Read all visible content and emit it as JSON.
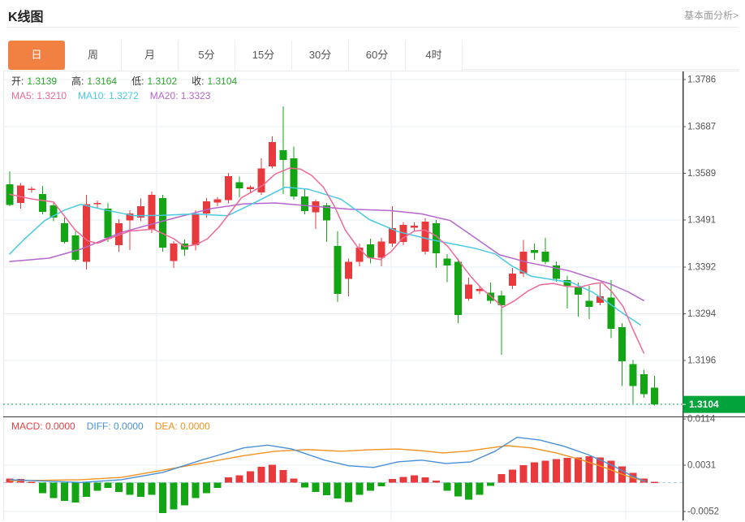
{
  "header": {
    "title": "K线图",
    "link": "基本面分析>"
  },
  "tabs": [
    {
      "id": "day",
      "label": "日",
      "active": true
    },
    {
      "id": "week",
      "label": "周",
      "active": false
    },
    {
      "id": "month",
      "label": "月",
      "active": false
    },
    {
      "id": "min5",
      "label": "5分",
      "active": false
    },
    {
      "id": "min15",
      "label": "15分",
      "active": false
    },
    {
      "id": "min30",
      "label": "30分",
      "active": false
    },
    {
      "id": "min60",
      "label": "60分",
      "active": false
    },
    {
      "id": "hour4",
      "label": "4时",
      "active": false
    }
  ],
  "ohlc_legend": {
    "items": [
      {
        "label": "开:",
        "value": "1.3139"
      },
      {
        "label": "高:",
        "value": "1.3164"
      },
      {
        "label": "低:",
        "value": "1.3102"
      },
      {
        "label": "收:",
        "value": "1.3104"
      }
    ]
  },
  "ma_legend": [
    {
      "label": "MA5:",
      "value": "1.3210",
      "color": "#ef6899"
    },
    {
      "label": "MA10:",
      "value": "1.3272",
      "color": "#49c9e4"
    },
    {
      "label": "MA20:",
      "value": "1.3323",
      "color": "#b666cc"
    }
  ],
  "macd_legend": [
    {
      "label": "MACD:",
      "value": "0.0000",
      "color": "#e64242"
    },
    {
      "label": "DIFF:",
      "value": "0.0000",
      "color": "#4a90d9"
    },
    {
      "label": "DEA:",
      "value": "0.0000",
      "color": "#f29221"
    }
  ],
  "colors": {
    "up": "#e83a3c",
    "down": "#13a513",
    "ma5": "#ef6899",
    "ma10": "#49c9e4",
    "ma20": "#b666cc",
    "diff": "#4a90d9",
    "dea": "#f29221",
    "tab_active": "#f08143",
    "badge": "#00a43b",
    "price_text": "#29a329",
    "axis_text": "#555555",
    "grid": "#e9eff5",
    "dark_line": "#3a3a3a",
    "border": "#e9e9e9",
    "zero_dash": "#aed0ec",
    "dotted_price": "#00a43b"
  },
  "chart_data": {
    "type": "candlestick_with_macd",
    "period_selected": "日",
    "price_axis_labels": [
      "1.3786",
      "1.3687",
      "1.3589",
      "1.3491",
      "1.3392",
      "1.3294",
      "1.3196"
    ],
    "macd_axis_labels": [
      "0.0114",
      "0.0031",
      "-0.0052"
    ],
    "last_price": "1.3104",
    "candles": [
      [
        1.3566,
        1.3593,
        1.352,
        1.3523
      ],
      [
        1.3527,
        1.3569,
        1.3515,
        1.3564
      ],
      [
        1.3554,
        1.3561,
        1.3548,
        1.3557
      ],
      [
        1.3546,
        1.3563,
        1.3503,
        1.3508
      ],
      [
        1.3522,
        1.3529,
        1.3489,
        1.3496
      ],
      [
        1.3484,
        1.3496,
        1.3442,
        1.3445
      ],
      [
        1.3459,
        1.3467,
        1.3404,
        1.3408
      ],
      [
        1.3403,
        1.3544,
        1.3387,
        1.3524
      ],
      [
        1.3524,
        1.3532,
        1.3517,
        1.3527
      ],
      [
        1.3515,
        1.3527,
        1.3445,
        1.3454
      ],
      [
        1.3438,
        1.3493,
        1.3425,
        1.3484
      ],
      [
        1.349,
        1.3512,
        1.3428,
        1.3505
      ],
      [
        1.3496,
        1.3536,
        1.3489,
        1.352
      ],
      [
        1.3471,
        1.3551,
        1.3464,
        1.3544
      ],
      [
        1.3537,
        1.3544,
        1.3425,
        1.3433
      ],
      [
        1.3405,
        1.3447,
        1.3391,
        1.3442
      ],
      [
        1.3442,
        1.345,
        1.3415,
        1.3429
      ],
      [
        1.3438,
        1.3512,
        1.3427,
        1.3505
      ],
      [
        1.3505,
        1.3537,
        1.3496,
        1.353
      ],
      [
        1.3528,
        1.354,
        1.352,
        1.3535
      ],
      [
        1.3533,
        1.359,
        1.3526,
        1.3583
      ],
      [
        1.357,
        1.3582,
        1.3539,
        1.3558
      ],
      [
        1.3556,
        1.3564,
        1.3549,
        1.356
      ],
      [
        1.3549,
        1.3621,
        1.3544,
        1.3599
      ],
      [
        1.3604,
        1.3667,
        1.3599,
        1.3655
      ],
      [
        1.3638,
        1.373,
        1.3546,
        1.3617
      ],
      [
        1.3621,
        1.3645,
        1.3534,
        1.3541
      ],
      [
        1.3541,
        1.3556,
        1.3503,
        1.351
      ],
      [
        1.3507,
        1.3534,
        1.3472,
        1.353
      ],
      [
        1.3522,
        1.3527,
        1.3445,
        1.349
      ],
      [
        1.3437,
        1.3467,
        1.3319,
        1.3336
      ],
      [
        1.3368,
        1.341,
        1.3331,
        1.3403
      ],
      [
        1.3403,
        1.3442,
        1.3394,
        1.3433
      ],
      [
        1.344,
        1.3452,
        1.34,
        1.3412
      ],
      [
        1.3412,
        1.3454,
        1.3394,
        1.3446
      ],
      [
        1.3442,
        1.352,
        1.3435,
        1.3474
      ],
      [
        1.3445,
        1.3487,
        1.3438,
        1.3481
      ],
      [
        1.3475,
        1.3486,
        1.3469,
        1.3479
      ],
      [
        1.3425,
        1.3495,
        1.3419,
        1.3488
      ],
      [
        1.3484,
        1.3491,
        1.3391,
        1.3421
      ],
      [
        1.341,
        1.342,
        1.3361,
        1.3396
      ],
      [
        1.3403,
        1.341,
        1.3275,
        1.3292
      ],
      [
        1.3326,
        1.337,
        1.3322,
        1.3356
      ],
      [
        1.3342,
        1.3352,
        1.3336,
        1.3346
      ],
      [
        1.3339,
        1.336,
        1.3316,
        1.3322
      ],
      [
        1.3333,
        1.3343,
        1.3208,
        1.3312
      ],
      [
        1.3353,
        1.3391,
        1.3346,
        1.3379
      ],
      [
        1.3379,
        1.3449,
        1.3372,
        1.3425
      ],
      [
        1.3428,
        1.3442,
        1.3408,
        1.3422
      ],
      [
        1.3425,
        1.3454,
        1.3398,
        1.3403
      ],
      [
        1.3396,
        1.3404,
        1.3362,
        1.3368
      ],
      [
        1.3365,
        1.3374,
        1.3305,
        1.3353
      ],
      [
        1.3351,
        1.336,
        1.3288,
        1.3334
      ],
      [
        1.3322,
        1.3353,
        1.3283,
        1.3309
      ],
      [
        1.3317,
        1.3357,
        1.3312,
        1.3331
      ],
      [
        1.3328,
        1.3365,
        1.3243,
        1.3263
      ],
      [
        1.3266,
        1.3275,
        1.3143,
        1.3195
      ],
      [
        1.3189,
        1.3197,
        1.3106,
        1.3143
      ],
      [
        1.3167,
        1.3177,
        1.3118,
        1.3126
      ],
      [
        1.3139,
        1.3164,
        1.3102,
        1.3104
      ]
    ],
    "ma5_points": [
      [
        0,
        1.3545
      ],
      [
        2.1,
        1.3535
      ],
      [
        4,
        1.3529
      ],
      [
        6,
        1.347
      ],
      [
        7.1,
        1.3448
      ],
      [
        8,
        1.3442
      ],
      [
        9.1,
        1.3452
      ],
      [
        11,
        1.3468
      ],
      [
        13.1,
        1.3472
      ],
      [
        15,
        1.3452
      ],
      [
        16,
        1.3435
      ],
      [
        17.1,
        1.344
      ],
      [
        18.1,
        1.3452
      ],
      [
        19.2,
        1.3478
      ],
      [
        20.2,
        1.3508
      ],
      [
        21.2,
        1.3538
      ],
      [
        22.3,
        1.3552
      ],
      [
        23.2,
        1.3565
      ],
      [
        24.3,
        1.3588
      ],
      [
        25.6,
        1.36
      ],
      [
        26.6,
        1.3598
      ],
      [
        27.6,
        1.3585
      ],
      [
        28.7,
        1.356
      ],
      [
        29.7,
        1.352
      ],
      [
        30.7,
        1.347
      ],
      [
        31.8,
        1.3435
      ],
      [
        32.8,
        1.3412
      ],
      [
        33.9,
        1.3408
      ],
      [
        34.9,
        1.3425
      ],
      [
        35.9,
        1.3452
      ],
      [
        37,
        1.3468
      ],
      [
        38,
        1.347
      ],
      [
        39,
        1.3458
      ],
      [
        40.1,
        1.3435
      ],
      [
        41.1,
        1.3405
      ],
      [
        42.2,
        1.3372
      ],
      [
        43.2,
        1.3347
      ],
      [
        44.2,
        1.3327
      ],
      [
        45.1,
        1.3308
      ],
      [
        46.2,
        1.3322
      ],
      [
        47.4,
        1.3342
      ],
      [
        48.5,
        1.3355
      ],
      [
        49.7,
        1.3358
      ],
      [
        50.9,
        1.3352
      ],
      [
        52.1,
        1.335
      ],
      [
        53.3,
        1.3357
      ],
      [
        54.2,
        1.336
      ],
      [
        55.1,
        1.334
      ],
      [
        56.1,
        1.331
      ],
      [
        57,
        1.3262
      ],
      [
        58,
        1.3212
      ]
    ],
    "ma10_points": [
      [
        0,
        1.342
      ],
      [
        1.3,
        1.345
      ],
      [
        3.2,
        1.349
      ],
      [
        5,
        1.3512
      ],
      [
        6.5,
        1.3524
      ],
      [
        8.8,
        1.3512
      ],
      [
        11.4,
        1.35
      ],
      [
        14,
        1.3501
      ],
      [
        16.9,
        1.3504
      ],
      [
        19.9,
        1.35
      ],
      [
        22.1,
        1.3524
      ],
      [
        25.2,
        1.356
      ],
      [
        27.3,
        1.3556
      ],
      [
        30.3,
        1.3535
      ],
      [
        32.9,
        1.3492
      ],
      [
        35.5,
        1.3467
      ],
      [
        38.5,
        1.345
      ],
      [
        40.7,
        1.344
      ],
      [
        42.5,
        1.3432
      ],
      [
        44.4,
        1.342
      ],
      [
        45.9,
        1.3395
      ],
      [
        47.7,
        1.3373
      ],
      [
        49.6,
        1.3366
      ],
      [
        51.4,
        1.336
      ],
      [
        53.3,
        1.334
      ],
      [
        54.9,
        1.3315
      ],
      [
        56.3,
        1.3292
      ],
      [
        57.7,
        1.3271
      ]
    ],
    "ma20_points": [
      [
        0,
        1.3404
      ],
      [
        3.6,
        1.3411
      ],
      [
        6.5,
        1.343
      ],
      [
        10.2,
        1.3465
      ],
      [
        14.7,
        1.3493
      ],
      [
        18.4,
        1.3515
      ],
      [
        21.4,
        1.3525
      ],
      [
        24.3,
        1.3527
      ],
      [
        27.3,
        1.3521
      ],
      [
        31,
        1.3514
      ],
      [
        34.8,
        1.3511
      ],
      [
        37.7,
        1.3504
      ],
      [
        40.3,
        1.349
      ],
      [
        42.5,
        1.3455
      ],
      [
        44.8,
        1.3418
      ],
      [
        47.4,
        1.3402
      ],
      [
        51.1,
        1.3385
      ],
      [
        54.8,
        1.3358
      ],
      [
        56.6,
        1.334
      ],
      [
        58,
        1.3322
      ]
    ],
    "macd_hist": [
      0.0007,
      0.0006,
      0.0001,
      -0.0019,
      -0.0028,
      -0.0033,
      -0.0036,
      -0.0026,
      -0.0015,
      -0.001,
      -0.0017,
      -0.0022,
      -0.0026,
      -0.0022,
      -0.0055,
      -0.0048,
      -0.0041,
      -0.0028,
      -0.0019,
      -0.001,
      0.0009,
      0.0013,
      0.002,
      0.0028,
      0.0032,
      0.0022,
      0.0007,
      -0.0009,
      -0.0017,
      -0.0023,
      -0.0029,
      -0.0035,
      -0.0022,
      -0.0015,
      -0.0007,
      0.0006,
      0.001,
      0.0013,
      0.0009,
      0.0003,
      -0.0015,
      -0.0025,
      -0.0031,
      -0.0022,
      -0.0006,
      0.0015,
      0.0023,
      0.0031,
      0.0036,
      0.0039,
      0.0042,
      0.0044,
      0.0045,
      0.0047,
      0.0045,
      0.0039,
      0.0029,
      0.0017,
      0.0007,
      0.0001
    ],
    "diff_points": [
      [
        0,
        0.0005
      ],
      [
        6.5,
        0.0
      ],
      [
        10.2,
        0.0005
      ],
      [
        14,
        0.0018
      ],
      [
        17.7,
        0.0041
      ],
      [
        21.4,
        0.0062
      ],
      [
        23.6,
        0.0067
      ],
      [
        25.8,
        0.006
      ],
      [
        28.8,
        0.004
      ],
      [
        31,
        0.003
      ],
      [
        33.3,
        0.0027
      ],
      [
        35.5,
        0.0037
      ],
      [
        37.7,
        0.004
      ],
      [
        39.9,
        0.0034
      ],
      [
        42.2,
        0.0037
      ],
      [
        44.4,
        0.0056
      ],
      [
        46.4,
        0.0081
      ],
      [
        48.5,
        0.0076
      ],
      [
        50.7,
        0.0065
      ],
      [
        52.9,
        0.005
      ],
      [
        55.1,
        0.0031
      ],
      [
        56.9,
        0.0012
      ],
      [
        58.1,
        0.0002
      ]
    ],
    "dea_points": [
      [
        0,
        0.0003
      ],
      [
        6.5,
        0.0005
      ],
      [
        10.2,
        0.0009
      ],
      [
        14,
        0.0022
      ],
      [
        17.7,
        0.0035
      ],
      [
        21.4,
        0.0048
      ],
      [
        24.3,
        0.0056
      ],
      [
        27.3,
        0.0059
      ],
      [
        30.3,
        0.0056
      ],
      [
        33.3,
        0.0059
      ],
      [
        35.5,
        0.006
      ],
      [
        37.7,
        0.0057
      ],
      [
        39.6,
        0.0053
      ],
      [
        41.8,
        0.0056
      ],
      [
        44,
        0.0062
      ],
      [
        45.5,
        0.0066
      ],
      [
        47.7,
        0.0062
      ],
      [
        50,
        0.0053
      ],
      [
        52.2,
        0.0041
      ],
      [
        54.4,
        0.0027
      ],
      [
        56.4,
        0.0012
      ],
      [
        58.1,
        0.0002
      ]
    ]
  }
}
